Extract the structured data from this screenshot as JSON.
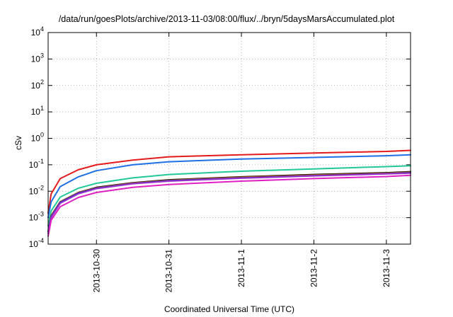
{
  "chart_data": {
    "type": "line",
    "title": "/data/run/goesPlots/archive/2013-11-03/08:00/flux/../bryn/5daysMarsAccumulated.plot",
    "xlabel": "Coordinated Universal Time (UTC)",
    "ylabel": "cSv",
    "yscale": "log",
    "ylim": [
      0.0001,
      10000
    ],
    "y_ticks": [
      {
        "value": 0.0001,
        "base": "10",
        "exp": "-4"
      },
      {
        "value": 0.001,
        "base": "10",
        "exp": "-3"
      },
      {
        "value": 0.01,
        "base": "10",
        "exp": "-2"
      },
      {
        "value": 0.1,
        "base": "10",
        "exp": "-1"
      },
      {
        "value": 1,
        "base": "10",
        "exp": "0"
      },
      {
        "value": 10,
        "base": "10",
        "exp": "1"
      },
      {
        "value": 100,
        "base": "10",
        "exp": "2"
      },
      {
        "value": 1000,
        "base": "10",
        "exp": "3"
      },
      {
        "value": 10000,
        "base": "10",
        "exp": "4"
      }
    ],
    "xlim": [
      "2013-10-29 08:00",
      "2013-11-03 08:00"
    ],
    "x_ticks": [
      "2013-10-30",
      "2013-10-31",
      "2013-11-1",
      "2013-11-2",
      "2013-11-3"
    ],
    "grid": true,
    "x": [
      "2013-10-29 08:00",
      "2013-10-29 09:00",
      "2013-10-29 12:00",
      "2013-10-29 18:00",
      "2013-10-30 00:00",
      "2013-10-30 12:00",
      "2013-10-31 00:00",
      "2013-11-01 00:00",
      "2013-11-02 00:00",
      "2013-11-03 00:00",
      "2013-11-03 08:00"
    ],
    "series": [
      {
        "color": "#e41a1c",
        "values": [
          0.0015,
          0.008,
          0.03,
          0.065,
          0.1,
          0.15,
          0.2,
          0.24,
          0.28,
          0.32,
          0.35
        ]
      },
      {
        "color": "#1f6fe5",
        "values": [
          0.001,
          0.004,
          0.015,
          0.035,
          0.06,
          0.1,
          0.13,
          0.165,
          0.19,
          0.22,
          0.24
        ]
      },
      {
        "color": "#20c997",
        "values": [
          0.0005,
          0.0018,
          0.006,
          0.013,
          0.02,
          0.032,
          0.043,
          0.057,
          0.07,
          0.085,
          0.092
        ]
      },
      {
        "color": "#000000",
        "values": [
          0.0003,
          0.0012,
          0.004,
          0.009,
          0.014,
          0.021,
          0.027,
          0.035,
          0.043,
          0.05,
          0.055
        ]
      },
      {
        "color": "#b35806",
        "values": [
          0.0003,
          0.0012,
          0.004,
          0.009,
          0.0135,
          0.0205,
          0.026,
          0.034,
          0.041,
          0.048,
          0.053
        ]
      },
      {
        "color": "#2b2bd0",
        "values": [
          0.0003,
          0.0011,
          0.0038,
          0.0085,
          0.013,
          0.0195,
          0.025,
          0.032,
          0.039,
          0.046,
          0.05
        ]
      },
      {
        "color": "#9932cc",
        "values": [
          0.00025,
          0.001,
          0.0035,
          0.008,
          0.0125,
          0.019,
          0.024,
          0.031,
          0.038,
          0.045,
          0.048
        ]
      },
      {
        "color": "#e020c0",
        "values": [
          0.0002,
          0.0008,
          0.0026,
          0.0058,
          0.009,
          0.014,
          0.018,
          0.024,
          0.03,
          0.036,
          0.04
        ]
      }
    ]
  }
}
